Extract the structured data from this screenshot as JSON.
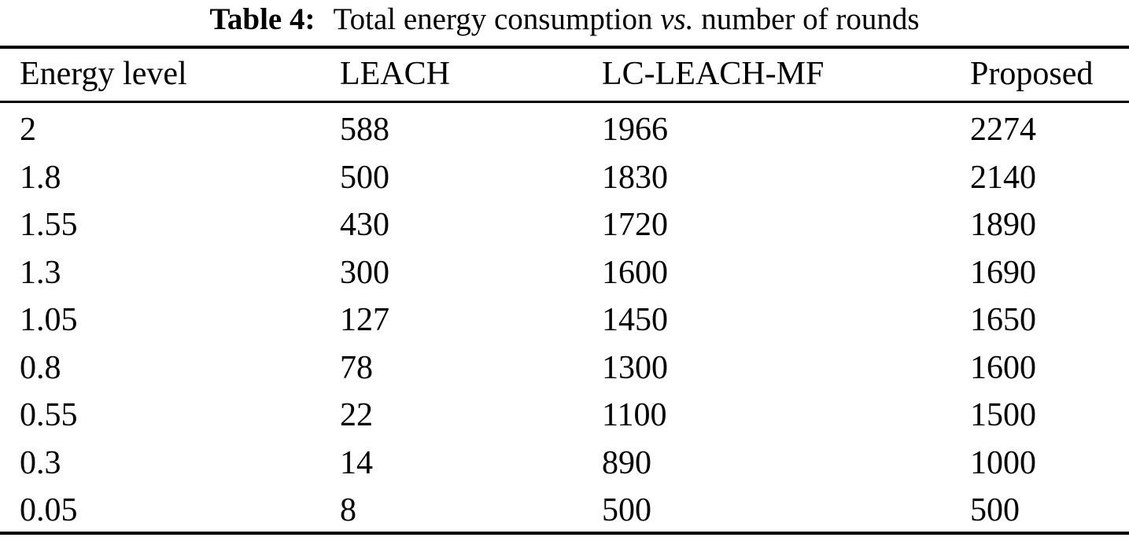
{
  "caption": {
    "label": "Table 4:",
    "text_before_italic": "Total energy consumption",
    "italic_word": "vs.",
    "text_after_italic": "number of rounds"
  },
  "table": {
    "columns": [
      "Energy level",
      "LEACH",
      "LC-LEACH-MF",
      "Proposed"
    ],
    "rows": [
      [
        "2",
        "588",
        "1966",
        "2274"
      ],
      [
        "1.8",
        "500",
        "1830",
        "2140"
      ],
      [
        "1.55",
        "430",
        "1720",
        "1890"
      ],
      [
        "1.3",
        "300",
        "1600",
        "1690"
      ],
      [
        "1.05",
        "127",
        "1450",
        "1650"
      ],
      [
        "0.8",
        "78",
        "1300",
        "1600"
      ],
      [
        "0.55",
        "22",
        "1100",
        "1500"
      ],
      [
        "0.3",
        "14",
        "890",
        "1000"
      ],
      [
        "0.05",
        "8",
        "500",
        "500"
      ]
    ]
  },
  "colors": {
    "text": "#000000",
    "background": "#ffffff",
    "rule": "#000000"
  }
}
